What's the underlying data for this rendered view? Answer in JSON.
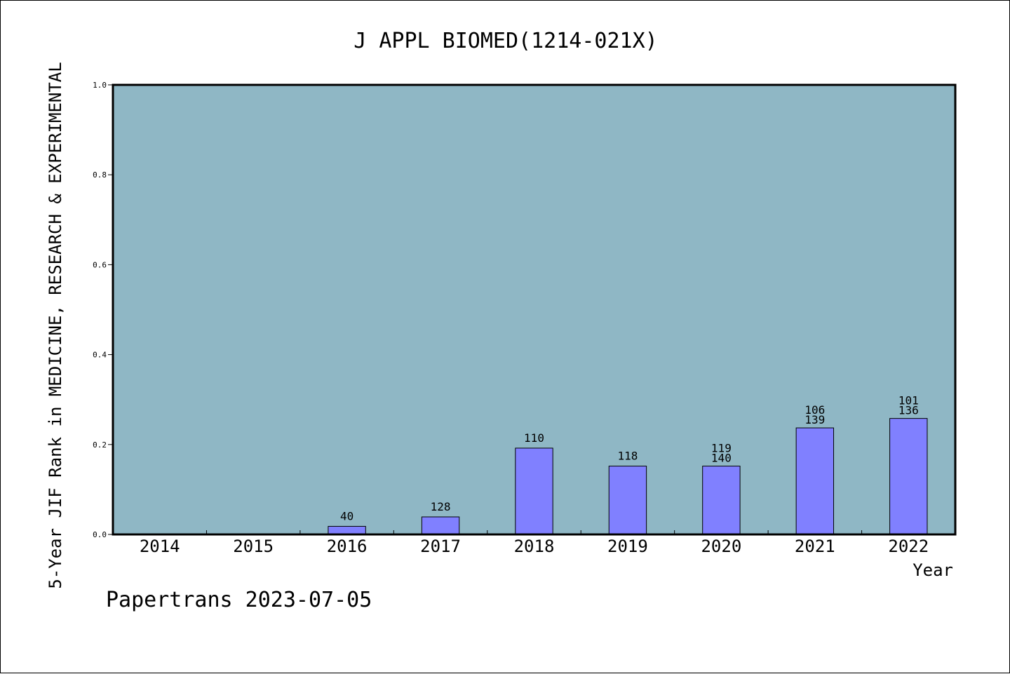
{
  "footer": "Papertrans 2023-07-05",
  "colors": {
    "plot_bg": "#8fb7c5",
    "bar_fill": "#8080ff",
    "bar_stroke": "#000000"
  },
  "chart_data": {
    "type": "bar",
    "title": "J APPL BIOMED(1214-021X)",
    "xlabel": "Year",
    "ylabel": "5-Year JIF Rank in MEDICINE, RESEARCH & EXPERIMENTAL",
    "ylim": [
      0,
      1.0
    ],
    "yticks": [
      "0.0",
      "0.2",
      "0.4",
      "0.6",
      "0.8",
      "1.0"
    ],
    "categories": [
      "2014",
      "2015",
      "2016",
      "2017",
      "2018",
      "2019",
      "2020",
      "2021",
      "2022"
    ],
    "values": [
      0,
      0,
      0.018,
      0.039,
      0.192,
      0.152,
      0.152,
      0.237,
      0.258
    ],
    "bar_labels": [
      [],
      [],
      [
        "40"
      ],
      [
        "128"
      ],
      [
        "110"
      ],
      [
        "118"
      ],
      [
        "119",
        "140"
      ],
      [
        "106",
        "139"
      ],
      [
        "101",
        "136"
      ]
    ],
    "grid": false,
    "legend": "none"
  }
}
